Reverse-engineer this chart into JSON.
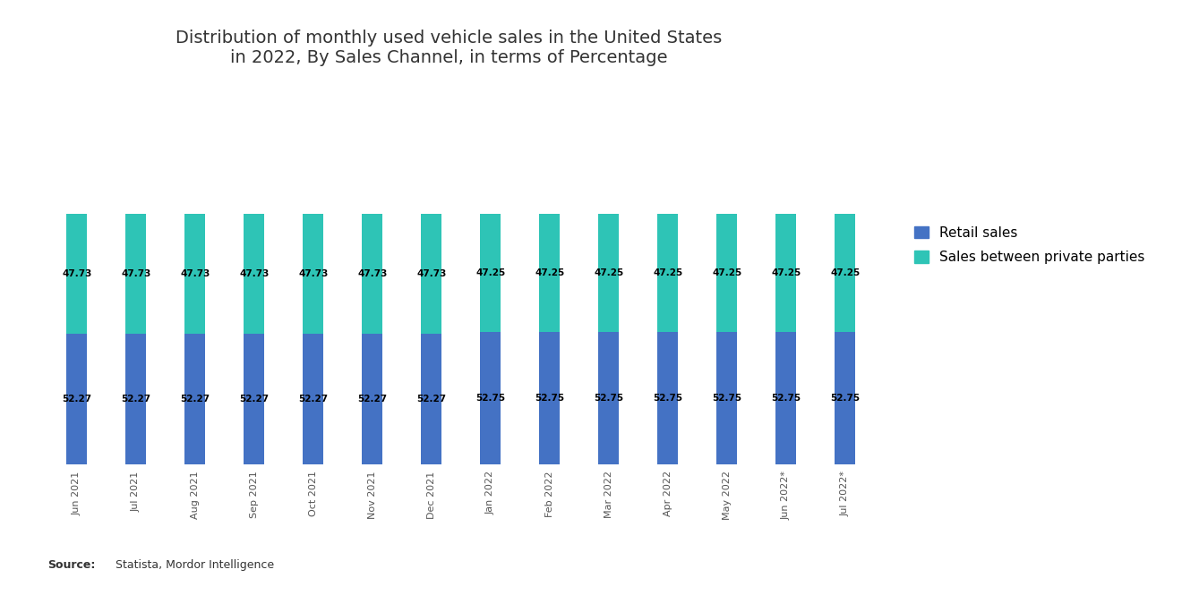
{
  "title": "Distribution of monthly used vehicle sales in the United States\nin 2022, By Sales Channel, in terms of Percentage",
  "categories": [
    "Jun 2021",
    "Jul 2021",
    "Aug 2021",
    "Sep 2021",
    "Oct 2021",
    "Nov 2021",
    "Dec 2021",
    "Jan 2022",
    "Feb 2022",
    "Mar 2022",
    "Apr 2022",
    "May 2022",
    "Jun 2022*",
    "Jul 2022*"
  ],
  "retail_sales": [
    52.27,
    52.27,
    52.27,
    52.27,
    52.27,
    52.27,
    52.27,
    52.75,
    52.75,
    52.75,
    52.75,
    52.75,
    52.75,
    52.75
  ],
  "private_sales": [
    47.73,
    47.73,
    47.73,
    47.73,
    47.73,
    47.73,
    47.73,
    47.25,
    47.25,
    47.25,
    47.25,
    47.25,
    47.25,
    47.25
  ],
  "retail_color": "#4472C4",
  "private_color": "#2EC4B6",
  "background_color": "#FFFFFF",
  "retail_label": "Retail sales",
  "private_label": "Sales between private parties",
  "source_bold": "Source:",
  "source_rest": "  Statista, Mordor Intelligence",
  "ylim": [
    0,
    100
  ],
  "title_fontsize": 14,
  "label_fontsize": 8,
  "legend_fontsize": 11,
  "bar_label_fontsize": 7.5,
  "bar_width": 0.35
}
